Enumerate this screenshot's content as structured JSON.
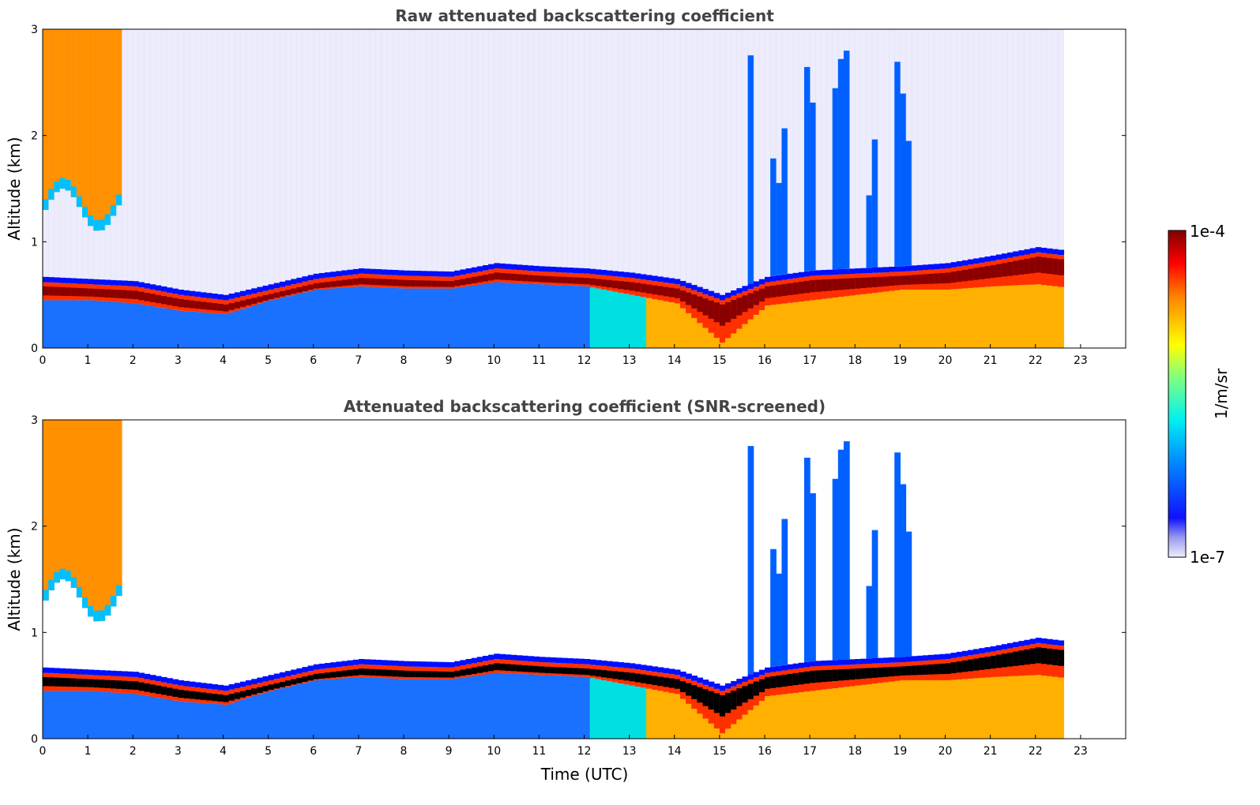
{
  "chart_data": [
    {
      "type": "heatmap",
      "title": "Raw attenuated backscattering coefficient",
      "xlabel": "",
      "ylabel": "Altitude (km)",
      "xlim": [
        0,
        24
      ],
      "ylim": [
        0,
        3
      ],
      "x_ticks": [
        "0",
        "1",
        "2",
        "3",
        "4",
        "5",
        "6",
        "7",
        "8",
        "9",
        "10",
        "11",
        "12",
        "13",
        "14",
        "15",
        "16",
        "17",
        "18",
        "19",
        "20",
        "21",
        "22",
        "23"
      ],
      "y_ticks": [
        "0",
        "1",
        "2",
        "3"
      ],
      "data_end_time": 22.6,
      "layer_top_km": [
        0.62,
        0.6,
        0.58,
        0.5,
        0.45,
        0.55,
        0.65,
        0.7,
        0.68,
        0.67,
        0.75,
        0.72,
        0.7,
        0.66,
        0.6,
        0.45,
        0.62,
        0.68,
        0.7,
        0.72,
        0.75,
        0.82,
        0.9,
        0.85
      ],
      "layer_bottom_km": [
        0.45,
        0.45,
        0.42,
        0.35,
        0.32,
        0.45,
        0.55,
        0.58,
        0.56,
        0.56,
        0.62,
        0.6,
        0.58,
        0.5,
        0.42,
        0.05,
        0.4,
        0.45,
        0.5,
        0.55,
        0.55,
        0.58,
        0.6,
        0.55
      ],
      "grid": false
    },
    {
      "type": "heatmap",
      "title": "Attenuated backscattering coefficient (SNR-screened)",
      "xlabel": "Time (UTC)",
      "ylabel": "Altitude (km)",
      "xlim": [
        0,
        24
      ],
      "ylim": [
        0,
        3
      ],
      "x_ticks": [
        "0",
        "1",
        "2",
        "3",
        "4",
        "5",
        "6",
        "7",
        "8",
        "9",
        "10",
        "11",
        "12",
        "13",
        "14",
        "15",
        "16",
        "17",
        "18",
        "19",
        "20",
        "21",
        "22",
        "23"
      ],
      "y_ticks": [
        "0",
        "1",
        "2",
        "3"
      ],
      "data_end_time": 22.6,
      "grid": false
    }
  ],
  "colorbar": {
    "label": "1/m/sr",
    "max_label": "1e-4",
    "min_label": "1e-7",
    "colors": [
      "#e8e8f8",
      "#9090ff",
      "#0000ff",
      "#0080ff",
      "#00ffff",
      "#80ff80",
      "#ffff00",
      "#ff8000",
      "#ff0000",
      "#800000"
    ]
  }
}
